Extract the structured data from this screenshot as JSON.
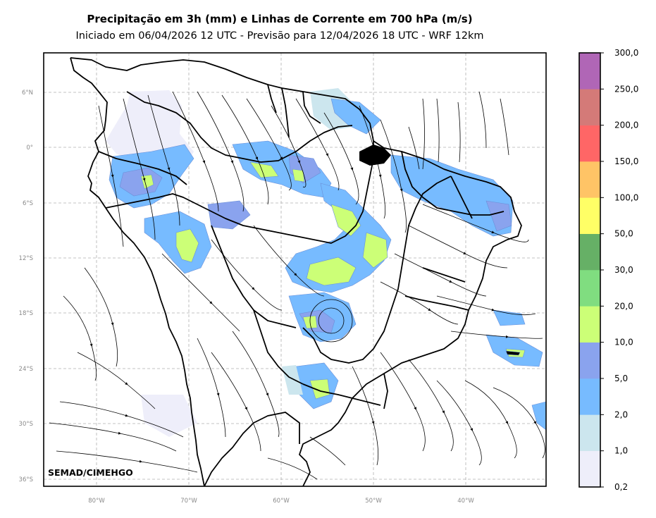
{
  "title": "Precipitação em 3h (mm) e Linhas de Corrente em 700 hPa (m/s)",
  "subtitle": "Iniciado em 06/04/2026 12 UTC - Previsão para 12/04/2026 18 UTC - WRF 12km",
  "credit": "SEMAD/CIMEHGO",
  "lat_ticks": [
    "6°N",
    "0°",
    "6°S",
    "12°S",
    "18°S",
    "24°S",
    "30°S",
    "36°S"
  ],
  "lon_ticks": [
    "80°W",
    "70°W",
    "60°W",
    "50°W",
    "40°W"
  ],
  "colorbar": {
    "levels": [
      "0,2",
      "1,0",
      "2,0",
      "5,0",
      "10,0",
      "20,0",
      "30,0",
      "50,0",
      "100,0",
      "150,0",
      "200,0",
      "250,0",
      "300,0"
    ],
    "colors": [
      "#eeeefa",
      "#cce6ee",
      "#77bbff",
      "#8aa3ee",
      "#ccff77",
      "#80dd80",
      "#66b066",
      "#ffff66",
      "#ffc466",
      "#ff6666",
      "#d47a78",
      "#b066b6"
    ]
  },
  "colors": {
    "grid": "#b0b0b0",
    "border": "#000000",
    "streamline": "#000000"
  }
}
